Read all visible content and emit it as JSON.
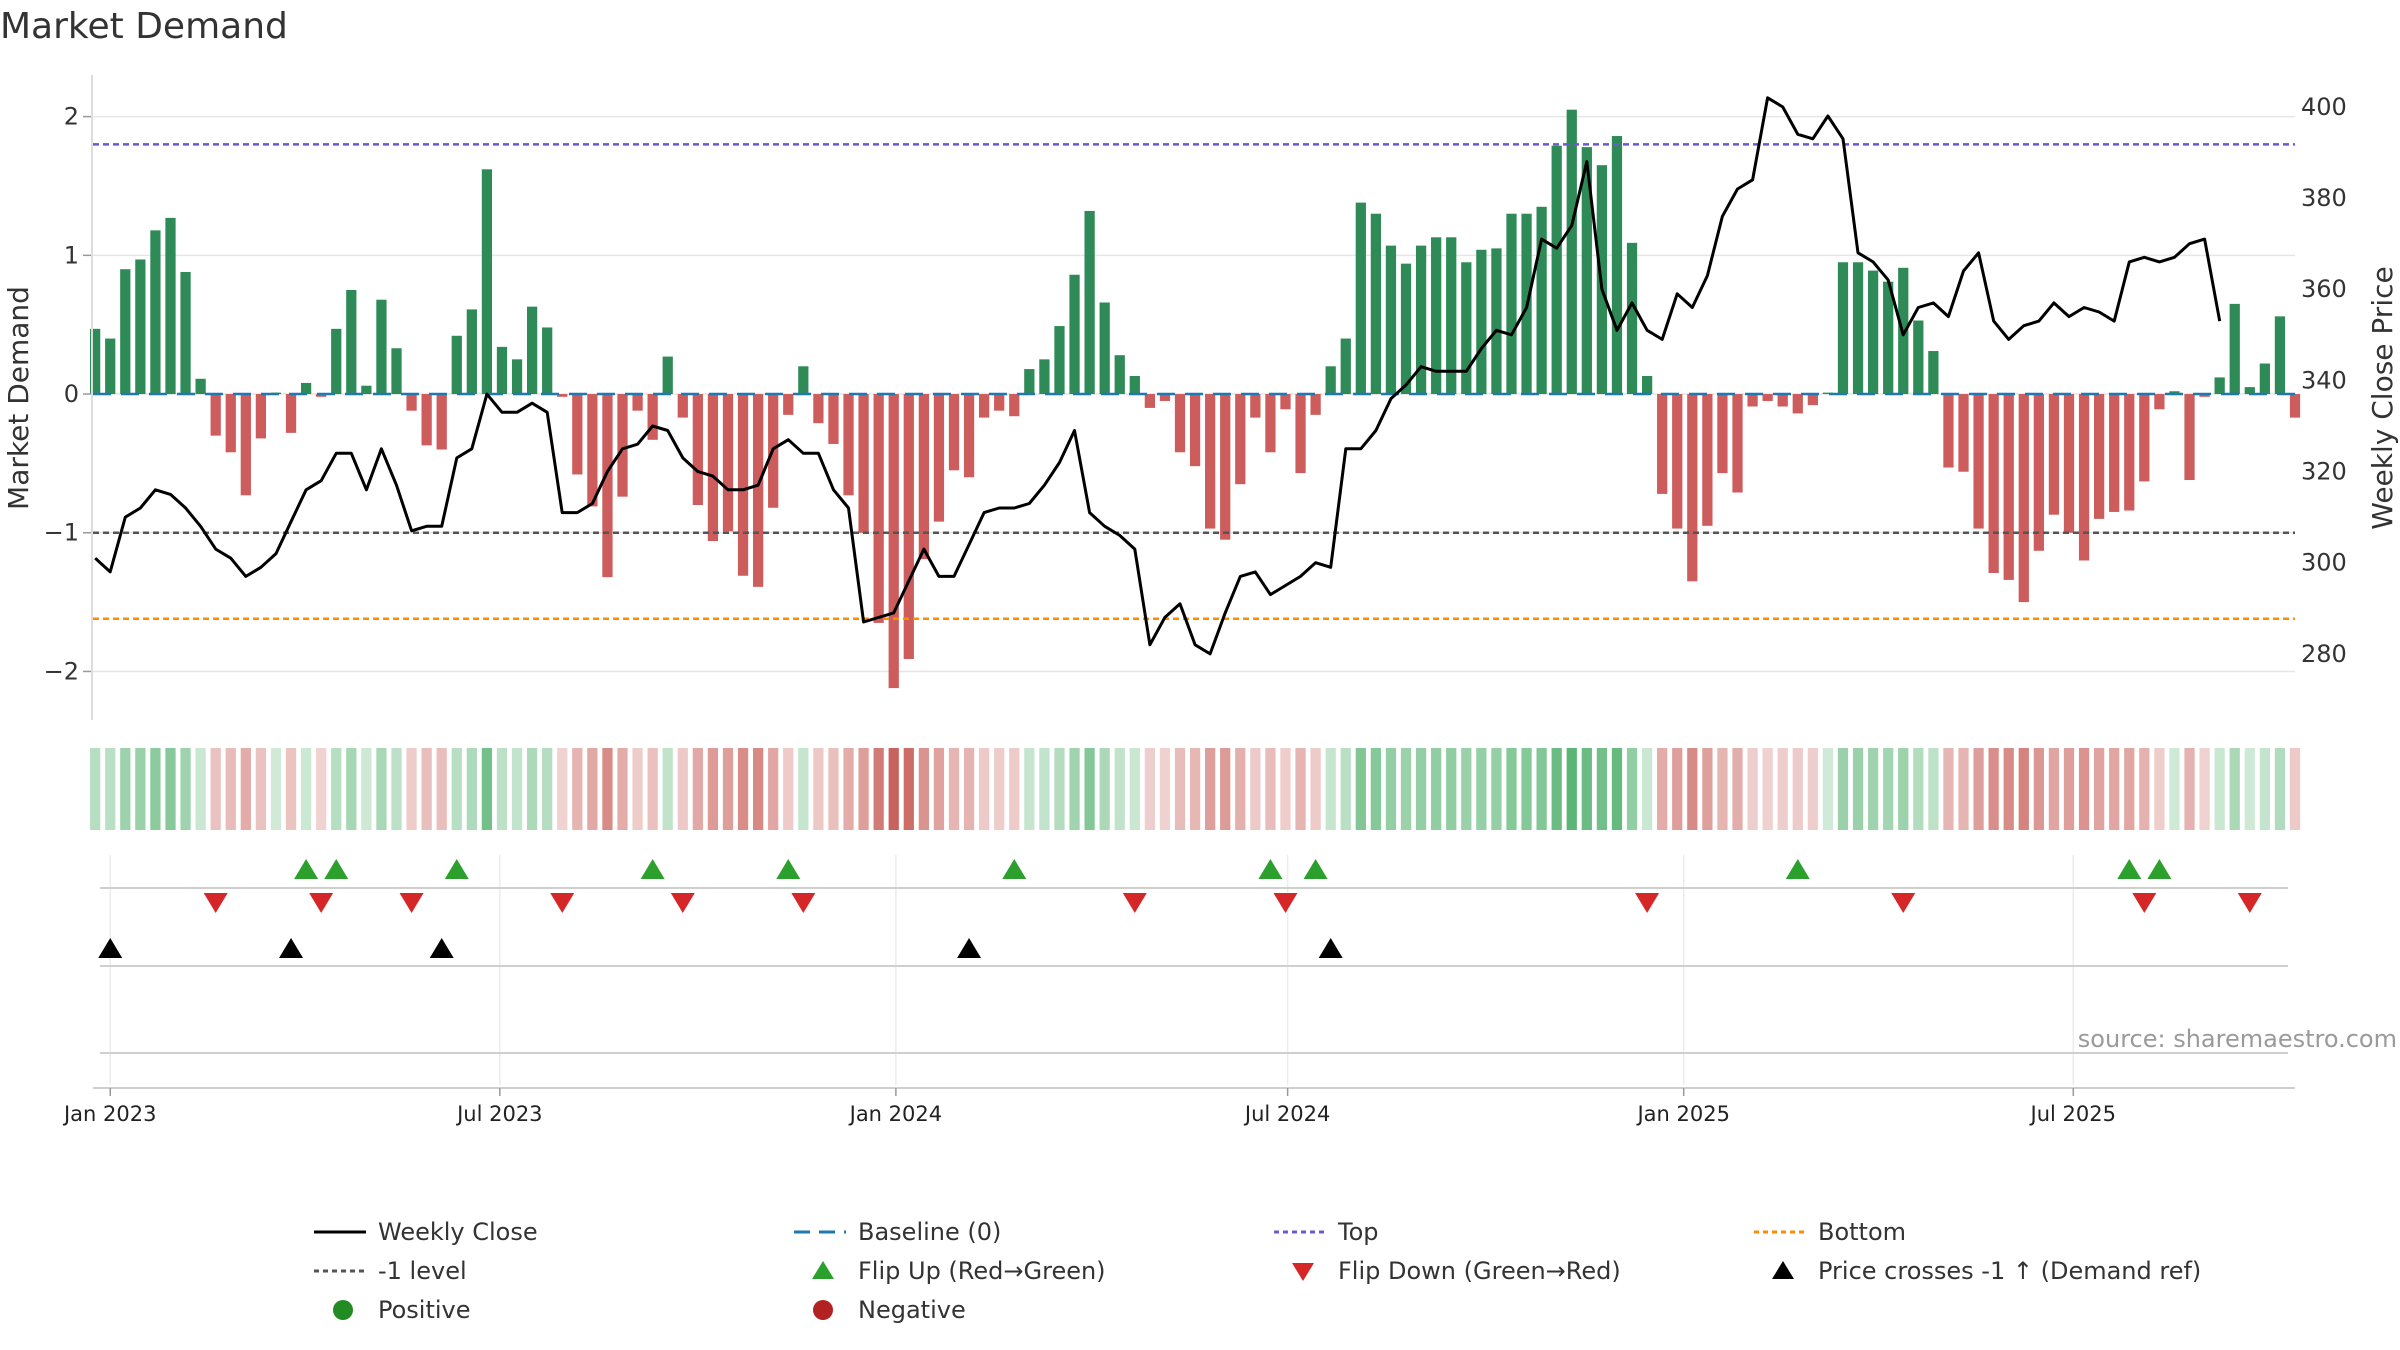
{
  "title": "Market Demand",
  "source": "source: sharemaestro.com",
  "colors": {
    "positive_bar": "#2e8b57",
    "negative_bar": "#cd5c5c",
    "close_line": "#000000",
    "baseline": "#1f77b4",
    "top_line": "#6a5acd",
    "bottom_line": "#ff8c00",
    "level_line": "#555555",
    "flip_up": "#2ca02c",
    "flip_down": "#d62728",
    "cross": "#000000",
    "positive_dot": "#228b22",
    "negative_dot": "#b22222",
    "grid": "#e6e6e6",
    "source": "#9a9a9a"
  },
  "chart_data": {
    "type": "bar",
    "title": "Market Demand",
    "xlabel": "",
    "ylabel": "Market Demand",
    "y2label": "Weekly Close Price",
    "ylim": [
      -2.35,
      2.3
    ],
    "y2lim": [
      265.5,
      407
    ],
    "yticks": [
      2,
      1,
      0,
      -1,
      -2
    ],
    "ytick_labels": [
      "2",
      "1",
      "0",
      "−1",
      "−2"
    ],
    "y2ticks": [
      400,
      380,
      360,
      340,
      320,
      300,
      280
    ],
    "y2tick_labels": [
      "400",
      "380",
      "360",
      "340",
      "320",
      "300",
      "280"
    ],
    "x_date_range": [
      "2022-12-24",
      "2025-10-12"
    ],
    "x_ticks": [
      {
        "date": "2023-01-01",
        "label": "Jan 2023"
      },
      {
        "date": "2023-07-01",
        "label": "Jul 2023"
      },
      {
        "date": "2024-01-01",
        "label": "Jan 2024"
      },
      {
        "date": "2024-07-01",
        "label": "Jul 2024"
      },
      {
        "date": "2025-01-01",
        "label": "Jan 2025"
      },
      {
        "date": "2025-07-01",
        "label": "Jul 2025"
      }
    ],
    "start_date": "2022-12-25",
    "week_step_days": 7,
    "reference_lines": {
      "baseline": 0,
      "top": 1.8,
      "minus_one": -1,
      "bottom": -1.62
    },
    "demand": [
      0.47,
      0.4,
      0.9,
      0.97,
      1.18,
      1.27,
      0.88,
      0.11,
      -0.3,
      -0.42,
      -0.73,
      -0.32,
      0.01,
      -0.28,
      0.08,
      -0.02,
      0.47,
      0.75,
      0.06,
      0.68,
      0.33,
      -0.12,
      -0.37,
      -0.4,
      0.42,
      0.61,
      1.62,
      0.34,
      0.25,
      0.63,
      0.48,
      -0.02,
      -0.58,
      -0.81,
      -1.32,
      -0.74,
      -0.12,
      -0.33,
      0.27,
      -0.17,
      -0.8,
      -1.06,
      -0.99,
      -1.31,
      -1.39,
      -0.82,
      -0.15,
      0.2,
      -0.21,
      -0.36,
      -0.73,
      -1.0,
      -1.65,
      -2.12,
      -1.91,
      -1.19,
      -0.92,
      -0.55,
      -0.6,
      -0.17,
      -0.12,
      -0.16,
      0.18,
      0.25,
      0.49,
      0.86,
      1.32,
      0.66,
      0.28,
      0.13,
      -0.1,
      -0.05,
      -0.42,
      -0.52,
      -0.97,
      -1.05,
      -0.65,
      -0.17,
      -0.42,
      -0.11,
      -0.57,
      -0.15,
      0.2,
      0.4,
      1.38,
      1.3,
      1.07,
      0.94,
      1.07,
      1.13,
      1.13,
      0.95,
      1.04,
      1.05,
      1.3,
      1.3,
      1.35,
      1.79,
      2.05,
      1.78,
      1.65,
      1.86,
      1.09,
      0.13,
      -0.72,
      -0.97,
      -1.35,
      -0.95,
      -0.57,
      -0.71,
      -0.09,
      -0.05,
      -0.09,
      -0.14,
      -0.08,
      0.01,
      0.95,
      0.95,
      0.89,
      0.81,
      0.91,
      0.53,
      0.31,
      -0.53,
      -0.56,
      -0.97,
      -1.29,
      -1.34,
      -1.5,
      -1.13,
      -0.87,
      -1.0,
      -1.2,
      -0.9,
      -0.85,
      -0.84,
      -0.63,
      -0.11,
      0.02,
      -0.62,
      -0.02,
      0.12,
      0.65,
      0.05,
      0.22,
      0.56,
      -0.17
    ],
    "weekly_close": [
      301,
      298,
      310,
      312,
      316,
      315,
      312,
      308,
      303,
      301,
      297,
      299,
      302,
      309,
      316,
      318,
      324,
      324,
      316,
      325,
      317,
      307,
      308,
      308,
      323,
      325,
      337,
      333,
      333,
      335,
      333,
      311,
      311,
      313,
      320,
      325,
      326,
      330,
      329,
      323,
      320,
      319,
      316,
      316,
      317,
      325,
      327,
      324,
      324,
      316,
      312,
      287,
      288,
      289,
      296,
      303,
      297,
      297,
      304,
      311,
      312,
      312,
      313,
      317,
      322,
      329,
      311,
      308,
      306,
      303,
      282,
      288,
      291,
      282,
      280,
      289,
      297,
      298,
      293,
      295,
      297,
      300,
      299,
      325,
      325,
      329,
      336,
      339,
      343,
      342,
      342,
      342,
      347,
      351,
      350,
      356,
      371,
      369,
      374,
      388,
      360,
      351,
      357,
      351,
      349,
      359,
      356,
      363,
      376,
      382,
      384,
      402,
      400,
      394,
      393,
      398,
      393,
      368,
      366,
      362,
      350,
      356,
      357,
      354,
      364,
      368,
      353,
      349,
      352,
      353,
      357,
      354,
      356,
      355,
      353,
      366,
      367,
      366,
      367,
      370,
      371,
      353
    ],
    "flip_up_weeks": [
      14,
      16,
      24,
      37,
      46,
      61,
      78,
      81,
      113,
      135,
      137
    ],
    "flip_down_weeks": [
      8,
      15,
      21,
      31,
      39,
      47,
      69,
      79,
      103,
      120,
      136,
      143
    ],
    "price_cross_weeks": [
      1,
      13,
      23,
      58,
      82
    ],
    "heat_strip": "market demand intensity per week (derived from demand values)"
  },
  "legend": [
    {
      "key": "close",
      "label": "Weekly Close"
    },
    {
      "key": "baseline",
      "label": "Baseline (0)"
    },
    {
      "key": "top",
      "label": "Top"
    },
    {
      "key": "bottom",
      "label": "Bottom"
    },
    {
      "key": "minus_one",
      "label": "-1 level"
    },
    {
      "key": "flip_up",
      "label": "Flip Up (Red→Green)"
    },
    {
      "key": "flip_down",
      "label": "Flip Down (Green→Red)"
    },
    {
      "key": "cross",
      "label": "Price crosses -1 ↑ (Demand ref)"
    },
    {
      "key": "positive",
      "label": "Positive"
    },
    {
      "key": "negative",
      "label": "Negative"
    }
  ]
}
